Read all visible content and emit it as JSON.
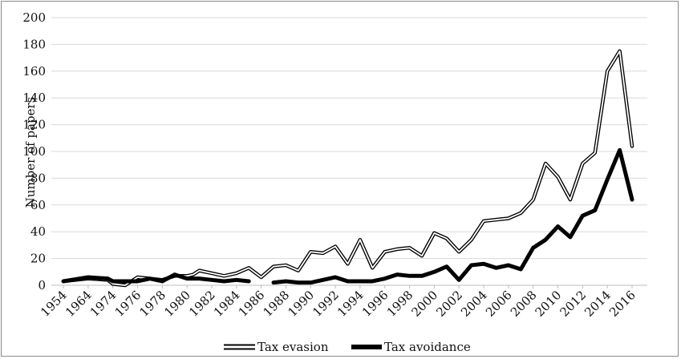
{
  "chart_data": {
    "type": "line",
    "title": "",
    "xlabel": "",
    "ylabel": "Number of papers",
    "ylim": [
      0,
      200
    ],
    "yticks": [
      0,
      20,
      40,
      60,
      80,
      100,
      120,
      140,
      160,
      180,
      200
    ],
    "x": [
      1954,
      1964,
      1974,
      1976,
      1978,
      1980,
      1982,
      1984,
      1986,
      1988,
      1990,
      1992,
      1994,
      1996,
      1998,
      2000,
      2002,
      2004,
      2006,
      2008,
      2010,
      2012,
      2014,
      2016
    ],
    "x_tick_labels": [
      "1954",
      "1964",
      "1974",
      "1976",
      "1978",
      "1980",
      "1982",
      "1984",
      "1986",
      "1988",
      "1990",
      "1992",
      "1994",
      "1996",
      "1998",
      "2000",
      "2002",
      "2004",
      "2006",
      "2008",
      "2010",
      "2012",
      "2014",
      "2016"
    ],
    "grid": "horizontal",
    "legend_position": "bottom",
    "series": [
      {
        "name": "Tax evasion",
        "style": "double-outline",
        "color": "#000000",
        "points": [
          [
            1954,
            3
          ],
          [
            1964,
            5
          ],
          [
            1972,
            4
          ],
          [
            1974,
            1
          ],
          [
            1975,
            0
          ],
          [
            1975.5,
            3
          ],
          [
            1976,
            6
          ],
          [
            1977,
            5
          ],
          [
            1978,
            4
          ],
          [
            1979,
            7
          ],
          [
            1980,
            7
          ],
          [
            1980.5,
            8
          ],
          [
            1981,
            11
          ],
          [
            1982,
            9
          ],
          [
            1983,
            7
          ],
          [
            1984,
            9
          ],
          [
            1985,
            13
          ],
          [
            1986,
            6
          ],
          [
            1987,
            14
          ],
          [
            1988,
            15
          ],
          [
            1989,
            11
          ],
          [
            1990,
            25
          ],
          [
            1991,
            24
          ],
          [
            1992,
            29
          ],
          [
            1993,
            16
          ],
          [
            1994,
            34
          ],
          [
            1995,
            13
          ],
          [
            1996,
            25
          ],
          [
            1997,
            27
          ],
          [
            1998,
            28
          ],
          [
            1999,
            22
          ],
          [
            2000,
            39
          ],
          [
            2001,
            35
          ],
          [
            2002,
            25
          ],
          [
            2003,
            34
          ],
          [
            2004,
            48
          ],
          [
            2005,
            49
          ],
          [
            2006,
            50
          ],
          [
            2007,
            54
          ],
          [
            2008,
            64
          ],
          [
            2009,
            91
          ],
          [
            2010,
            81
          ],
          [
            2011,
            64
          ],
          [
            2012,
            91
          ],
          [
            2013,
            99
          ],
          [
            2014,
            160
          ],
          [
            2015,
            175
          ],
          [
            2016,
            104
          ]
        ]
      },
      {
        "name": "Tax avoidance",
        "style": "thick-solid",
        "color": "#000000",
        "segments": [
          [
            [
              1954,
              3
            ],
            [
              1964,
              6
            ],
            [
              1972,
              5
            ],
            [
              1974,
              3
            ],
            [
              1976,
              3
            ],
            [
              1977,
              5
            ],
            [
              1978,
              3
            ],
            [
              1979,
              8
            ],
            [
              1980,
              5
            ],
            [
              1981,
              5
            ],
            [
              1982,
              4
            ],
            [
              1983,
              3
            ],
            [
              1984,
              4
            ],
            [
              1985,
              3
            ]
          ],
          [
            [
              1987,
              2
            ],
            [
              1988,
              3
            ],
            [
              1989,
              2
            ],
            [
              1990,
              2
            ],
            [
              1991,
              4
            ],
            [
              1992,
              6
            ],
            [
              1993,
              3
            ],
            [
              1994,
              3
            ],
            [
              1995,
              3
            ],
            [
              1996,
              5
            ],
            [
              1997,
              8
            ],
            [
              1998,
              7
            ],
            [
              1999,
              7
            ],
            [
              2000,
              10
            ],
            [
              2001,
              14
            ],
            [
              2002,
              4
            ],
            [
              2003,
              15
            ],
            [
              2004,
              16
            ],
            [
              2005,
              13
            ],
            [
              2006,
              15
            ],
            [
              2007,
              12
            ],
            [
              2008,
              28
            ],
            [
              2009,
              34
            ],
            [
              2010,
              44
            ],
            [
              2011,
              36
            ],
            [
              2012,
              52
            ],
            [
              2013,
              56
            ],
            [
              2014,
              79
            ],
            [
              2015,
              101
            ],
            [
              2016,
              64
            ]
          ]
        ]
      }
    ]
  }
}
